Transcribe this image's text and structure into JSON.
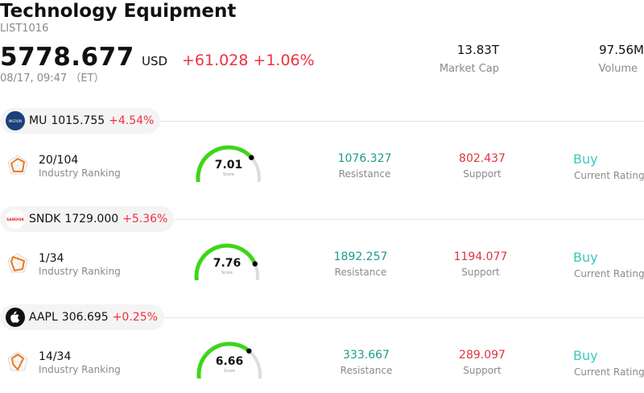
{
  "header": {
    "title": "Technology Equipment",
    "code": "LIST1016",
    "price": "5778.677",
    "currency": "USD",
    "change": "+61.028",
    "change_pct": "+1.06%",
    "time": "08/17, 09:47 （ET）",
    "market_cap_value": "13.83T",
    "market_cap_label": "Market Cap",
    "volume_value": "97.56M",
    "volume_label": "Volume"
  },
  "labels": {
    "industry_ranking": "Industry Ranking",
    "resistance": "Resistance",
    "support": "Support",
    "current_rating": "Current Rating",
    "score": "Score"
  },
  "stocks": [
    {
      "ticker": "MU",
      "price": "1015.755",
      "change_pct": "+4.54%",
      "rank": "20/104",
      "score": "7.01",
      "score_fraction": 0.701,
      "resistance": "1076.327",
      "support": "802.437",
      "rating": "Buy",
      "logo_text": "MICRON",
      "logo_icon": "micron-logo-icon"
    },
    {
      "ticker": "SNDK",
      "price": "1729.000",
      "change_pct": "+5.36%",
      "rank": "1/34",
      "score": "7.76",
      "score_fraction": 0.776,
      "resistance": "1892.257",
      "support": "1194.077",
      "rating": "Buy",
      "logo_text": "SANDISK",
      "logo_icon": "sandisk-logo-icon"
    },
    {
      "ticker": "AAPL",
      "price": "306.695",
      "change_pct": "+0.25%",
      "rank": "14/34",
      "score": "6.66",
      "score_fraction": 0.666,
      "resistance": "333.667",
      "support": "289.097",
      "rating": "Buy",
      "logo_icon": "apple-logo-icon"
    }
  ],
  "colors": {
    "up": "#f0313f",
    "resistance": "#1a9c8a",
    "support": "#e2323f",
    "buy": "#3cc8c0",
    "gauge": "#3ed51a",
    "gauge_track": "#dcdce4",
    "rank_icon": "#f07a1a"
  }
}
